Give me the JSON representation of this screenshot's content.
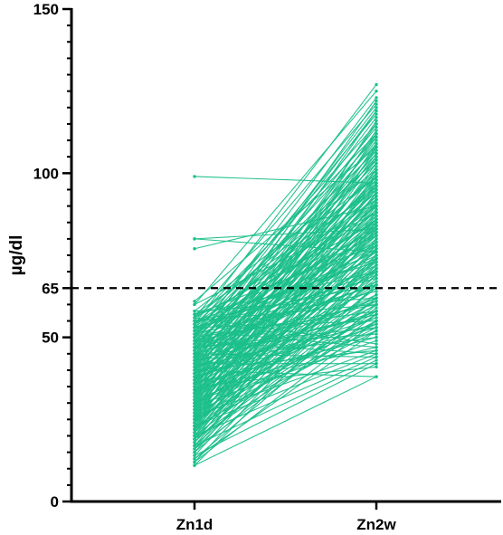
{
  "chart_data": {
    "type": "line",
    "title": "",
    "xlabel": "",
    "ylabel": "µg/dl",
    "categories": [
      "Zn1d",
      "Zn2w"
    ],
    "ylim": [
      0,
      150
    ],
    "y_ticks_major": [
      0,
      50,
      65,
      100,
      150
    ],
    "y_tick_labels": [
      "0",
      "50",
      "65",
      "100",
      "150"
    ],
    "y_minor_step": 5,
    "reference_line": {
      "value": 65,
      "style": "dashed",
      "color": "#000000"
    },
    "series_color": "#1abf8a",
    "grid": false,
    "legend": "none",
    "pairs": [
      [
        99,
        97
      ],
      [
        80,
        76
      ],
      [
        77,
        90
      ],
      [
        80,
        83
      ],
      [
        61,
        108
      ],
      [
        60,
        88
      ],
      [
        58,
        101
      ],
      [
        57,
        95
      ],
      [
        57,
        78
      ],
      [
        56,
        121
      ],
      [
        56,
        99
      ],
      [
        56,
        85
      ],
      [
        55,
        112
      ],
      [
        55,
        73
      ],
      [
        55,
        60
      ],
      [
        54,
        104
      ],
      [
        54,
        92
      ],
      [
        54,
        81
      ],
      [
        53,
        115
      ],
      [
        53,
        96
      ],
      [
        53,
        68
      ],
      [
        53,
        55
      ],
      [
        52,
        107
      ],
      [
        52,
        88
      ],
      [
        52,
        76
      ],
      [
        51,
        118
      ],
      [
        51,
        99
      ],
      [
        51,
        83
      ],
      [
        51,
        64
      ],
      [
        50,
        111
      ],
      [
        50,
        94
      ],
      [
        50,
        79
      ],
      [
        50,
        58
      ],
      [
        49,
        103
      ],
      [
        49,
        86
      ],
      [
        49,
        70
      ],
      [
        48,
        120
      ],
      [
        48,
        97
      ],
      [
        48,
        84
      ],
      [
        48,
        66
      ],
      [
        47,
        109
      ],
      [
        47,
        91
      ],
      [
        47,
        75
      ],
      [
        47,
        53
      ],
      [
        46,
        114
      ],
      [
        46,
        100
      ],
      [
        46,
        82
      ],
      [
        46,
        69
      ],
      [
        45,
        106
      ],
      [
        45,
        93
      ],
      [
        45,
        78
      ],
      [
        45,
        61
      ],
      [
        44,
        117
      ],
      [
        44,
        98
      ],
      [
        44,
        87
      ],
      [
        44,
        72
      ],
      [
        43,
        105
      ],
      [
        43,
        90
      ],
      [
        43,
        77
      ],
      [
        43,
        57
      ],
      [
        42,
        112
      ],
      [
        42,
        96
      ],
      [
        42,
        83
      ],
      [
        42,
        67
      ],
      [
        41,
        108
      ],
      [
        41,
        92
      ],
      [
        41,
        79
      ],
      [
        41,
        62
      ],
      [
        40,
        119
      ],
      [
        40,
        101
      ],
      [
        40,
        86
      ],
      [
        40,
        73
      ],
      [
        39,
        110
      ],
      [
        39,
        95
      ],
      [
        39,
        81
      ],
      [
        39,
        65
      ],
      [
        38,
        104
      ],
      [
        38,
        89
      ],
      [
        38,
        76
      ],
      [
        38,
        56
      ],
      [
        37,
        115
      ],
      [
        37,
        99
      ],
      [
        37,
        85
      ],
      [
        37,
        70
      ],
      [
        36,
        107
      ],
      [
        36,
        93
      ],
      [
        36,
        80
      ],
      [
        36,
        63
      ],
      [
        35,
        113
      ],
      [
        35,
        97
      ],
      [
        35,
        84
      ],
      [
        35,
        71
      ],
      [
        34,
        102
      ],
      [
        34,
        88
      ],
      [
        34,
        74
      ],
      [
        34,
        58
      ],
      [
        33,
        111
      ],
      [
        33,
        95
      ],
      [
        33,
        82
      ],
      [
        33,
        66
      ],
      [
        32,
        106
      ],
      [
        32,
        91
      ],
      [
        32,
        78
      ],
      [
        32,
        61
      ],
      [
        31,
        116
      ],
      [
        31,
        98
      ],
      [
        31,
        86
      ],
      [
        31,
        72
      ],
      [
        30,
        103
      ],
      [
        30,
        89
      ],
      [
        30,
        75
      ],
      [
        30,
        54
      ],
      [
        29,
        109
      ],
      [
        29,
        94
      ],
      [
        29,
        81
      ],
      [
        29,
        67
      ],
      [
        28,
        101
      ],
      [
        28,
        87
      ],
      [
        28,
        73
      ],
      [
        28,
        60
      ],
      [
        27,
        112
      ],
      [
        27,
        96
      ],
      [
        27,
        83
      ],
      [
        27,
        69
      ],
      [
        26,
        105
      ],
      [
        26,
        90
      ],
      [
        26,
        77
      ],
      [
        26,
        63
      ],
      [
        25,
        99
      ],
      [
        25,
        85
      ],
      [
        25,
        71
      ],
      [
        25,
        57
      ],
      [
        24,
        108
      ],
      [
        24,
        92
      ],
      [
        24,
        79
      ],
      [
        24,
        65
      ],
      [
        23,
        100
      ],
      [
        23,
        86
      ],
      [
        23,
        74
      ],
      [
        23,
        52
      ],
      [
        22,
        94
      ],
      [
        22,
        82
      ],
      [
        22,
        68
      ],
      [
        21,
        97
      ],
      [
        21,
        84
      ],
      [
        21,
        70
      ],
      [
        20,
        91
      ],
      [
        20,
        78
      ],
      [
        20,
        62
      ],
      [
        19,
        88
      ],
      [
        19,
        75
      ],
      [
        19,
        59
      ],
      [
        18,
        85
      ],
      [
        18,
        72
      ],
      [
        17,
        80
      ],
      [
        17,
        66
      ],
      [
        16,
        83
      ],
      [
        16,
        69
      ],
      [
        15,
        77
      ],
      [
        15,
        62
      ],
      [
        14,
        74
      ],
      [
        13,
        60
      ],
      [
        12,
        71
      ],
      [
        12,
        55
      ],
      [
        11,
        66
      ],
      [
        56,
        48
      ],
      [
        52,
        47
      ],
      [
        49,
        45
      ],
      [
        47,
        51
      ],
      [
        45,
        44
      ],
      [
        43,
        50
      ],
      [
        42,
        42
      ],
      [
        40,
        46
      ],
      [
        38,
        53
      ],
      [
        36,
        50
      ],
      [
        34,
        47
      ],
      [
        31,
        52
      ],
      [
        29,
        49
      ],
      [
        26,
        46
      ],
      [
        23,
        45
      ],
      [
        20,
        44
      ],
      [
        17,
        43
      ],
      [
        14,
        42
      ],
      [
        11,
        38
      ],
      [
        40,
        38
      ],
      [
        35,
        41
      ],
      [
        58,
        62
      ],
      [
        57,
        70
      ],
      [
        55,
        66
      ],
      [
        53,
        74
      ],
      [
        51,
        90
      ],
      [
        49,
        60
      ],
      [
        47,
        66
      ],
      [
        44,
        57
      ],
      [
        41,
        54
      ],
      [
        39,
        58
      ],
      [
        37,
        62
      ],
      [
        33,
        56
      ],
      [
        30,
        60
      ],
      [
        27,
        55
      ],
      [
        25,
        53
      ],
      [
        22,
        58
      ],
      [
        19,
        55
      ],
      [
        16,
        57
      ],
      [
        13,
        52
      ],
      [
        60,
        125
      ],
      [
        54,
        127
      ],
      [
        50,
        123
      ],
      [
        46,
        119
      ],
      [
        43,
        122
      ]
    ]
  }
}
